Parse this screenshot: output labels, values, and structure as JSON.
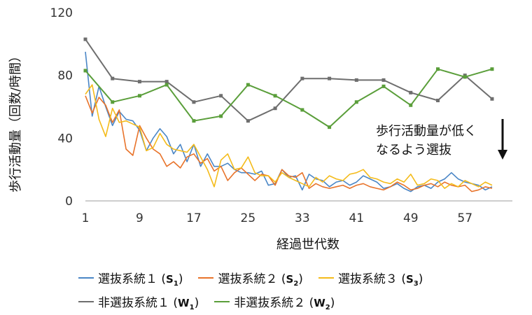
{
  "chart_data": {
    "type": "line",
    "xlabel": "経過世代数",
    "ylabel": "歩行活動量（回数/時間）",
    "xlim": [
      1,
      64
    ],
    "ylim": [
      0,
      120
    ],
    "xticks": [
      1,
      9,
      17,
      25,
      33,
      41,
      49,
      57
    ],
    "yticks": [
      0,
      40,
      80,
      120
    ],
    "annotation": {
      "line1": "歩行活動量が低く",
      "line2": "なるよう選抜"
    },
    "grid": false,
    "legend_position": "bottom",
    "series": [
      {
        "name": "選抜系統１",
        "code": "S",
        "sub": "1",
        "color": "#4a86c6",
        "marker": "none",
        "x": [
          1,
          2,
          3,
          4,
          5,
          6,
          7,
          8,
          9,
          10,
          11,
          12,
          13,
          14,
          15,
          16,
          17,
          18,
          19,
          20,
          21,
          22,
          23,
          24,
          25,
          26,
          27,
          28,
          29,
          30,
          31,
          32,
          33,
          34,
          35,
          36,
          37,
          38,
          39,
          40,
          41,
          42,
          43,
          44,
          45,
          46,
          47,
          48,
          49,
          50,
          51,
          52,
          53,
          54,
          55,
          56,
          57,
          58,
          59,
          60,
          61
        ],
        "y": [
          95,
          54,
          73,
          60,
          48,
          57,
          52,
          51,
          45,
          32,
          40,
          46,
          41,
          30,
          36,
          25,
          36,
          22,
          30,
          22,
          22,
          24,
          20,
          18,
          18,
          17,
          19,
          10,
          11,
          20,
          15,
          16,
          7,
          17,
          14,
          13,
          9,
          12,
          13,
          10,
          12,
          16,
          14,
          12,
          8,
          9,
          11,
          8,
          6,
          9,
          10,
          8,
          12,
          14,
          18,
          14,
          12,
          11,
          10,
          7,
          9
        ]
      },
      {
        "name": "選抜系統２",
        "code": "S",
        "sub": "2",
        "color": "#e8732a",
        "marker": "none",
        "x": [
          1,
          2,
          3,
          4,
          5,
          6,
          7,
          8,
          9,
          10,
          11,
          12,
          13,
          14,
          15,
          16,
          17,
          18,
          19,
          20,
          21,
          22,
          23,
          24,
          25,
          26,
          27,
          28,
          29,
          30,
          31,
          32,
          33,
          34,
          35,
          36,
          37,
          38,
          39,
          40,
          41,
          42,
          43,
          44,
          45,
          46,
          47,
          48,
          49,
          50,
          51,
          52,
          53,
          54,
          55,
          56,
          57,
          58,
          59,
          60,
          61
        ],
        "y": [
          67,
          56,
          66,
          61,
          50,
          58,
          33,
          29,
          48,
          40,
          33,
          30,
          22,
          25,
          21,
          28,
          30,
          24,
          27,
          19,
          22,
          13,
          18,
          21,
          17,
          13,
          17,
          16,
          10,
          20,
          16,
          15,
          18,
          8,
          11,
          9,
          8,
          9,
          10,
          8,
          10,
          11,
          9,
          8,
          7,
          9,
          12,
          10,
          7,
          8,
          10,
          11,
          9,
          12,
          10,
          9,
          10,
          6,
          7,
          9,
          8
        ]
      },
      {
        "name": "選抜系統３",
        "code": "S",
        "sub": "3",
        "color": "#f4bb1a",
        "marker": "none",
        "x": [
          1,
          2,
          3,
          4,
          5,
          6,
          7,
          8,
          9,
          10,
          11,
          12,
          13,
          14,
          15,
          16,
          17,
          18,
          19,
          20,
          21,
          22,
          23,
          24,
          25,
          26,
          27,
          28,
          29,
          30,
          31,
          32,
          33,
          34,
          35,
          36,
          37,
          38,
          39,
          40,
          41,
          42,
          43,
          44,
          45,
          46,
          47,
          48,
          49,
          50,
          51,
          52,
          53,
          54,
          55,
          56,
          57,
          58,
          59,
          60,
          61
        ],
        "y": [
          68,
          74,
          52,
          41,
          59,
          50,
          51,
          49,
          47,
          32,
          34,
          43,
          36,
          33,
          32,
          31,
          36,
          28,
          20,
          9,
          26,
          30,
          20,
          21,
          28,
          18,
          16,
          16,
          12,
          18,
          15,
          13,
          11,
          9,
          15,
          12,
          16,
          14,
          13,
          17,
          18,
          20,
          15,
          14,
          12,
          11,
          14,
          12,
          17,
          10,
          11,
          14,
          13,
          8,
          11,
          9,
          13,
          11,
          9,
          12,
          10
        ]
      },
      {
        "name": "非選抜系統１",
        "code": "W",
        "sub": "1",
        "color": "#6e6e6e",
        "marker": "square",
        "x": [
          1,
          5,
          9,
          13,
          17,
          21,
          25,
          29,
          33,
          37,
          41,
          45,
          49,
          53,
          57,
          61
        ],
        "y": [
          103,
          78,
          76,
          76,
          63,
          67,
          51,
          59,
          78,
          78,
          77,
          77,
          69,
          64,
          80,
          65
        ]
      },
      {
        "name": "非選抜系統２",
        "code": "W",
        "sub": "2",
        "color": "#5a9e3a",
        "marker": "square",
        "x": [
          1,
          5,
          9,
          13,
          17,
          21,
          25,
          29,
          33,
          37,
          41,
          45,
          49,
          53,
          57,
          61
        ],
        "y": [
          83,
          63,
          67,
          74,
          51,
          54,
          74,
          67,
          58,
          47,
          63,
          73,
          61,
          84,
          79,
          84
        ]
      }
    ]
  }
}
